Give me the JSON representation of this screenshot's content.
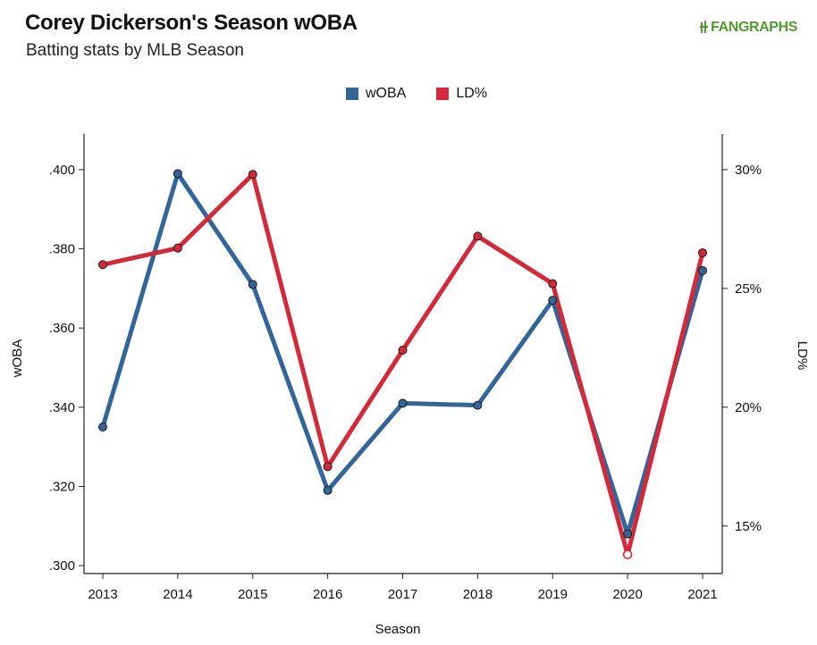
{
  "header": {
    "title": "Corey Dickerson's Season wOBA",
    "subtitle": "Batting stats by MLB Season",
    "logo_text": "FANGRAPHS"
  },
  "colors": {
    "woba": "#346598",
    "ld": "#d22a3a",
    "axis": "#222222",
    "logo": "#4f9b2f"
  },
  "chart_data": {
    "type": "line",
    "title": "Corey Dickerson's Season wOBA",
    "subtitle": "Batting stats by MLB Season",
    "xlabel": "Season",
    "ylabel": "wOBA",
    "y2label": "LD%",
    "categories": [
      "2013",
      "2014",
      "2015",
      "2016",
      "2017",
      "2018",
      "2019",
      "2020",
      "2021"
    ],
    "ylim": [
      0.298,
      0.409
    ],
    "y2lim": [
      13.0,
      31.5
    ],
    "yticks": [
      ".300",
      ".320",
      ".340",
      ".360",
      ".380",
      ".400"
    ],
    "ytick_values": [
      0.3,
      0.32,
      0.34,
      0.36,
      0.38,
      0.4
    ],
    "y2ticks": [
      "15%",
      "20%",
      "25%",
      "30%"
    ],
    "y2tick_values": [
      15,
      20,
      25,
      30
    ],
    "legend_position": "top-center",
    "grid": false,
    "series": [
      {
        "name": "wOBA",
        "axis": "left",
        "values": [
          0.335,
          0.399,
          0.371,
          0.319,
          0.341,
          0.3405,
          0.367,
          0.308,
          0.3745
        ]
      },
      {
        "name": "LD%",
        "axis": "right",
        "values": [
          26.0,
          26.7,
          29.8,
          17.5,
          22.4,
          27.2,
          25.2,
          13.8,
          26.5
        ]
      }
    ]
  }
}
